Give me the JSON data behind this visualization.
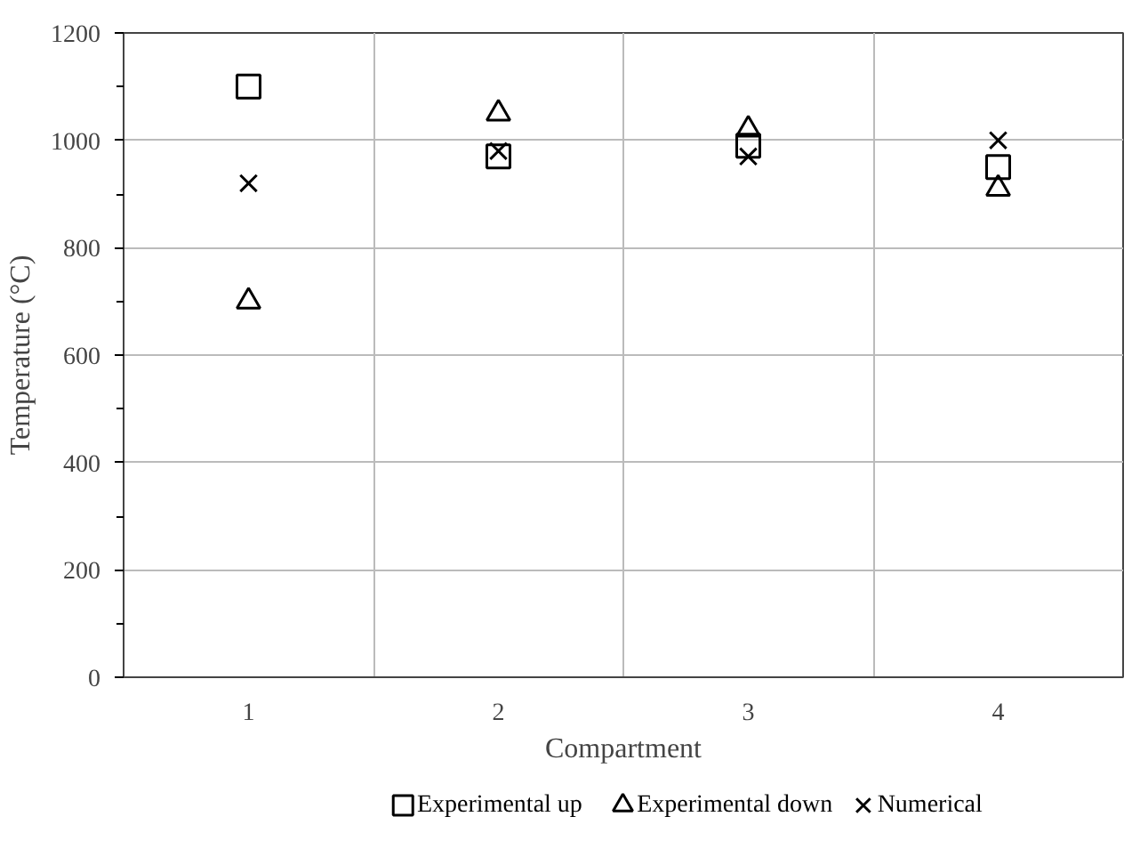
{
  "chart_data": {
    "type": "scatter",
    "xlabel": "Compartment",
    "ylabel": "Temperature (°C)",
    "categories": [
      "1",
      "2",
      "3",
      "4"
    ],
    "series": [
      {
        "name": "Experimental up",
        "color": "#000000",
        "marker": "square",
        "values": [
          1100,
          970,
          990,
          950
        ]
      },
      {
        "name": "Experimental down",
        "color": "#000000",
        "marker": "triangle",
        "values": [
          700,
          1050,
          1020,
          910
        ]
      },
      {
        "name": "Numerical",
        "color": "#000000",
        "marker": "cross",
        "values": [
          920,
          980,
          970,
          1000
        ]
      }
    ],
    "ylim": [
      0,
      1200
    ],
    "yticks": [
      0,
      200,
      400,
      600,
      800,
      1000,
      1200
    ],
    "grid": true,
    "legend": "bottom"
  }
}
